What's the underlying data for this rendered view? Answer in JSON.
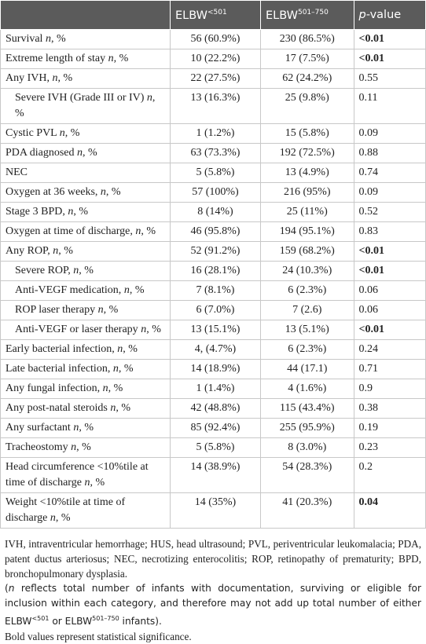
{
  "table": {
    "header": [
      [
        ""
      ],
      [
        "ELBW",
        {
          "sup": "<501"
        }
      ],
      [
        "ELBW",
        {
          "sup": "501–750"
        }
      ],
      [
        {
          "i": "p"
        },
        "-value"
      ]
    ],
    "rows": [
      {
        "label": [
          "Survival ",
          {
            "i": "n"
          },
          ", %"
        ],
        "cells": [
          "56 (60.9%)",
          "230 (86.5%)",
          "<0.01"
        ],
        "bold": true
      },
      {
        "label": [
          "Extreme length of stay ",
          {
            "i": "n"
          },
          ", %"
        ],
        "cells": [
          "10 (22.2%)",
          "17 (7.5%)",
          "<0.01"
        ],
        "bold": true
      },
      {
        "label": [
          "Any IVH, ",
          {
            "i": "n"
          },
          ", %"
        ],
        "cells": [
          "22 (27.5%)",
          "62 (24.2%)",
          "0.55"
        ]
      },
      {
        "label": [
          "Severe IVH (Grade III or IV) ",
          {
            "i": "n"
          },
          ", %"
        ],
        "cells": [
          "13 (16.3%)",
          "25 (9.8%)",
          "0.11"
        ],
        "indent": true
      },
      {
        "label": [
          "Cystic PVL ",
          {
            "i": "n"
          },
          ", %"
        ],
        "cells": [
          "1 (1.2%)",
          "15 (5.8%)",
          "0.09"
        ]
      },
      {
        "label": [
          "PDA diagnosed ",
          {
            "i": "n"
          },
          ", %"
        ],
        "cells": [
          "63 (73.3%)",
          "192 (72.5%)",
          "0.88"
        ]
      },
      {
        "label": [
          "NEC"
        ],
        "cells": [
          "5 (5.8%)",
          "13 (4.9%)",
          "0.74"
        ]
      },
      {
        "label": [
          "Oxygen at 36 weeks, ",
          {
            "i": "n"
          },
          ", %"
        ],
        "cells": [
          "57 (100%)",
          "216 (95%)",
          "0.09"
        ]
      },
      {
        "label": [
          "Stage 3 BPD, ",
          {
            "i": "n"
          },
          ", %"
        ],
        "cells": [
          "8 (14%)",
          "25 (11%)",
          "0.52"
        ]
      },
      {
        "label": [
          "Oxygen at time of discharge, ",
          {
            "i": "n"
          },
          ", %"
        ],
        "cells": [
          "46 (95.8%)",
          "194 (95.1%)",
          "0.83"
        ]
      },
      {
        "label": [
          "Any ROP, ",
          {
            "i": "n"
          },
          ", %"
        ],
        "cells": [
          "52 (91.2%)",
          "159 (68.2%)",
          "<0.01"
        ],
        "bold": true
      },
      {
        "label": [
          "Severe ROP, ",
          {
            "i": "n"
          },
          ", %"
        ],
        "cells": [
          "16 (28.1%)",
          "24 (10.3%)",
          "<0.01"
        ],
        "bold": true,
        "indent": true
      },
      {
        "label": [
          "Anti-VEGF medication, ",
          {
            "i": "n"
          },
          ", %"
        ],
        "cells": [
          "7 (8.1%)",
          "6 (2.3%)",
          "0.06"
        ],
        "indent": true
      },
      {
        "label": [
          "ROP laser therapy ",
          {
            "i": "n"
          },
          ", %"
        ],
        "cells": [
          "6 (7.0%)",
          "7 (2.6)",
          "0.06"
        ],
        "indent": true
      },
      {
        "label": [
          "Anti-VEGF or laser therapy ",
          {
            "i": "n"
          },
          ", %"
        ],
        "cells": [
          "13 (15.1%)",
          "13 (5.1%)",
          "<0.01"
        ],
        "bold": true,
        "indent": true
      },
      {
        "label": [
          "Early bacterial infection, ",
          {
            "i": "n"
          },
          ", %"
        ],
        "cells": [
          "4, (4.7%)",
          "6 (2.3%)",
          "0.24"
        ]
      },
      {
        "label": [
          "Late bacterial infection, ",
          {
            "i": "n"
          },
          ", %"
        ],
        "cells": [
          "14 (18.9%)",
          "44 (17.1)",
          "0.71"
        ]
      },
      {
        "label": [
          "Any fungal infection, ",
          {
            "i": "n"
          },
          ", %"
        ],
        "cells": [
          "1 (1.4%)",
          "4 (1.6%)",
          "0.9"
        ]
      },
      {
        "label": [
          "Any post-natal steroids ",
          {
            "i": "n"
          },
          ", %"
        ],
        "cells": [
          "42 (48.8%)",
          "115 (43.4%)",
          "0.38"
        ]
      },
      {
        "label": [
          "Any surfactant ",
          {
            "i": "n"
          },
          ", %"
        ],
        "cells": [
          "85 (92.4%)",
          "255 (95.9%)",
          "0.19"
        ]
      },
      {
        "label": [
          "Tracheostomy ",
          {
            "i": "n"
          },
          ", %"
        ],
        "cells": [
          "5 (5.8%)",
          "8 (3.0%)",
          "0.23"
        ]
      },
      {
        "label": [
          "Head circumference <10%tile at time of discharge ",
          {
            "i": "n"
          },
          ", %"
        ],
        "cells": [
          "14 (38.9%)",
          "54 (28.3%)",
          "0.2"
        ]
      },
      {
        "label": [
          "Weight <10%tile at time of discharge ",
          {
            "i": "n"
          },
          ", %"
        ],
        "cells": [
          "14 (35%)",
          "41 (20.3%)",
          "0.04"
        ],
        "bold": true
      }
    ]
  },
  "notes": [
    {
      "sans": false,
      "parts": [
        "IVH, intraventricular hemorrhage; HUS, head ultrasound; PVL, periventricular leukomalacia; PDA, patent ductus arteriosus; NEC, necrotizing enterocolitis; ROP, retinopathy of prematurity; BPD, bronchopulmonary dysplasia."
      ]
    },
    {
      "sans": true,
      "parts": [
        "(",
        {
          "i": "n"
        },
        " reflects total number of infants with documentation, surviving or eligible for inclusion within each category, and therefore may not add up total number of either ELBW",
        {
          "sup": "<501"
        },
        " or ELBW",
        {
          "sup": "501–750"
        },
        " infants)."
      ]
    },
    {
      "sans": false,
      "parts": [
        "Bold values represent statistical significance."
      ]
    }
  ]
}
